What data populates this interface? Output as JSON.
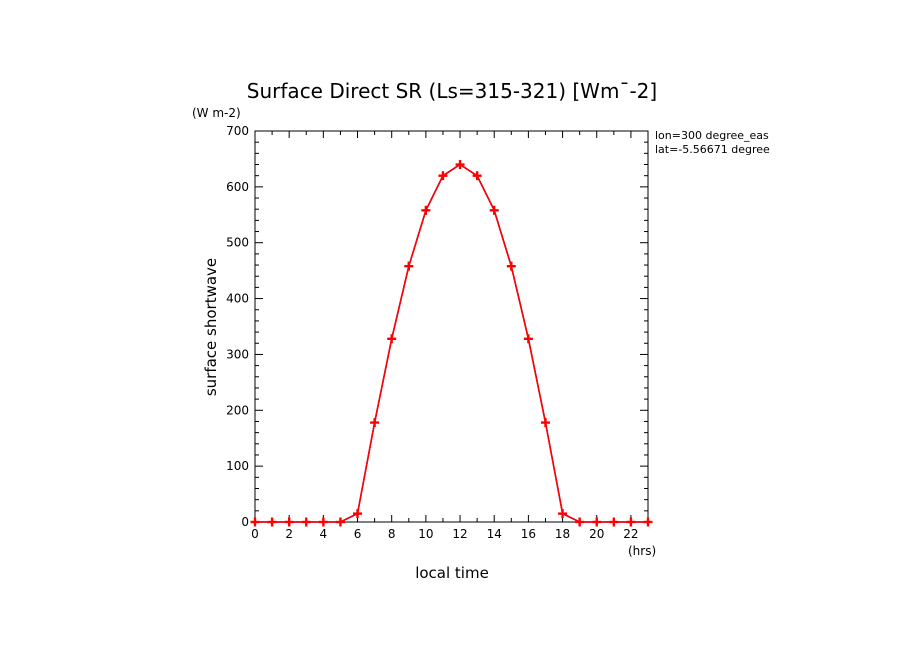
{
  "chart_data": {
    "type": "line",
    "title": "Surface Direct SR (Ls=315-321) [Wm¯-2]",
    "xlabel": "local time",
    "ylabel": "surface shortwave",
    "x_unit": "(hrs)",
    "y_unit": "(W m-2)",
    "annotations": [
      "lon=300 degree_eas",
      "lat=-5.56671 degree"
    ],
    "xlim": [
      0,
      23
    ],
    "ylim": [
      0,
      700
    ],
    "x_ticks": [
      0,
      2,
      4,
      6,
      8,
      10,
      12,
      14,
      16,
      18,
      20,
      22
    ],
    "y_ticks": [
      0,
      100,
      200,
      300,
      400,
      500,
      600,
      700
    ],
    "grid": false,
    "series": [
      {
        "x": [
          0,
          1,
          2,
          3,
          4,
          5,
          6,
          7,
          8,
          9,
          10,
          11,
          12,
          13,
          14,
          15,
          16,
          17,
          18,
          19,
          20,
          21,
          22,
          23
        ],
        "values": [
          0,
          0,
          0,
          0,
          0,
          0,
          15,
          178,
          328,
          458,
          558,
          620,
          640,
          620,
          558,
          458,
          328,
          178,
          15,
          0,
          0,
          0,
          0,
          0
        ],
        "color": "#ff0000",
        "marker": "plus"
      }
    ]
  }
}
